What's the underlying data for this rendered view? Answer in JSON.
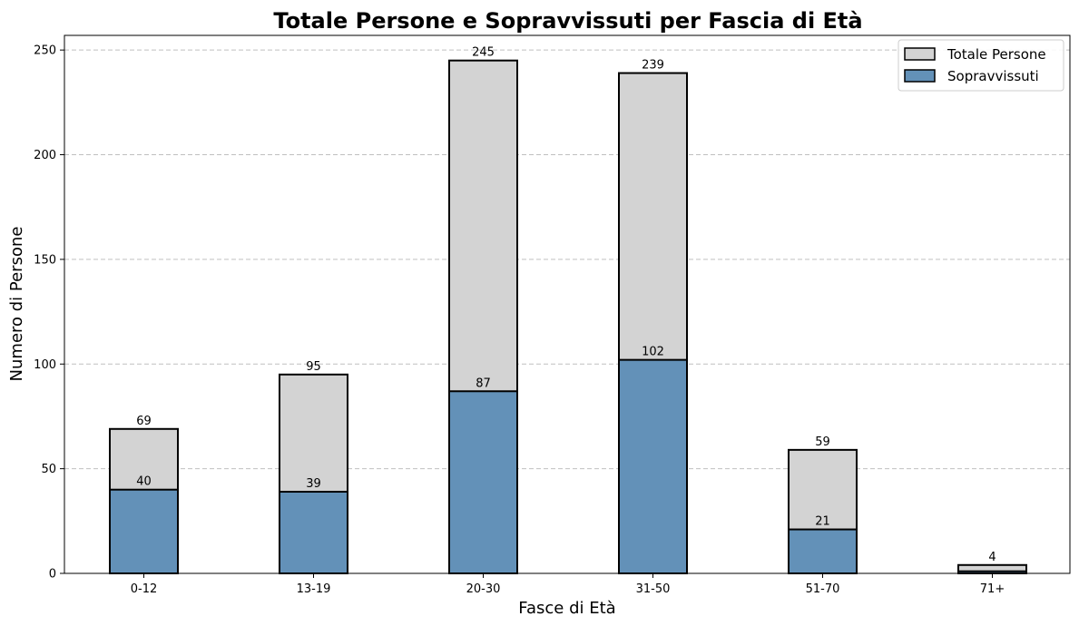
{
  "chart_data": {
    "type": "bar",
    "title": "Totale Persone e Sopravvissuti per Fascia di Età",
    "xlabel": "Fasce di Età",
    "ylabel": "Numero di Persone",
    "categories": [
      "0-12",
      "13-19",
      "20-30",
      "31-50",
      "51-70",
      "71+"
    ],
    "series": [
      {
        "name": "Totale Persone",
        "values": [
          69,
          95,
          245,
          239,
          59,
          4
        ],
        "color": "#d3d3d3"
      },
      {
        "name": "Sopravvissuti",
        "values": [
          40,
          39,
          87,
          102,
          21,
          1
        ],
        "color": "#6391b8"
      }
    ],
    "data_labels": {
      "Totale Persone": [
        "69",
        "95",
        "245",
        "239",
        "59",
        "4"
      ],
      "Sopravvissuti": [
        "40",
        "39",
        "87",
        "102",
        "21",
        ""
      ]
    },
    "ylim": [
      0,
      257
    ],
    "yticks": [
      0,
      50,
      100,
      150,
      200,
      250
    ],
    "grid": "y-dashed",
    "legend_position": "top-right",
    "overlay": true
  }
}
